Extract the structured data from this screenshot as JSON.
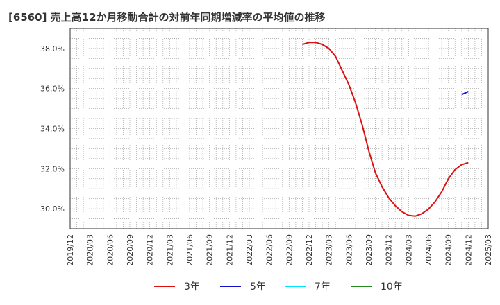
{
  "chart_data": {
    "type": "line",
    "title": "[6560]  売上高12か月移動合計の対前年同期増減率の平均値の推移",
    "xlabel": "",
    "ylabel": "",
    "ylim": [
      29.0,
      39.0
    ],
    "yticks": [
      30.0,
      32.0,
      34.0,
      36.0,
      38.0
    ],
    "ytick_labels": [
      "30.0%",
      "32.0%",
      "34.0%",
      "36.0%",
      "38.0%"
    ],
    "x_range": [
      "2019/12",
      "2025/03"
    ],
    "x_tick_labels": [
      "2019/12",
      "2020/03",
      "2020/06",
      "2020/09",
      "2020/12",
      "2021/03",
      "2021/06",
      "2021/09",
      "2021/12",
      "2022/03",
      "2022/06",
      "2022/09",
      "2022/12",
      "2023/03",
      "2023/06",
      "2023/09",
      "2023/12",
      "2024/03",
      "2024/06",
      "2024/09",
      "2024/12",
      "2025/03"
    ],
    "grid": true,
    "legend_position": "bottom",
    "series": [
      {
        "name": "3年",
        "color": "#dd1111",
        "points": [
          [
            "2022/11",
            38.2
          ],
          [
            "2022/12",
            38.3
          ],
          [
            "2023/01",
            38.3
          ],
          [
            "2023/02",
            38.2
          ],
          [
            "2023/03",
            38.0
          ],
          [
            "2023/04",
            37.6
          ],
          [
            "2023/05",
            36.9
          ],
          [
            "2023/06",
            36.2
          ],
          [
            "2023/07",
            35.3
          ],
          [
            "2023/08",
            34.2
          ],
          [
            "2023/09",
            32.9
          ],
          [
            "2023/10",
            31.8
          ],
          [
            "2023/11",
            31.1
          ],
          [
            "2023/12",
            30.55
          ],
          [
            "2024/01",
            30.15
          ],
          [
            "2024/02",
            29.85
          ],
          [
            "2024/03",
            29.67
          ],
          [
            "2024/04",
            29.63
          ],
          [
            "2024/05",
            29.75
          ],
          [
            "2024/06",
            29.98
          ],
          [
            "2024/07",
            30.35
          ],
          [
            "2024/08",
            30.85
          ],
          [
            "2024/09",
            31.5
          ],
          [
            "2024/10",
            31.95
          ],
          [
            "2024/11",
            32.2
          ],
          [
            "2024/12",
            32.3
          ]
        ]
      },
      {
        "name": "5年",
        "color": "#1111cc",
        "points": [
          [
            "2024/11",
            35.7
          ],
          [
            "2024/12",
            35.85
          ]
        ]
      },
      {
        "name": "7年",
        "color": "#00e5ff",
        "points": []
      },
      {
        "name": "10年",
        "color": "#228822",
        "points": []
      }
    ]
  }
}
